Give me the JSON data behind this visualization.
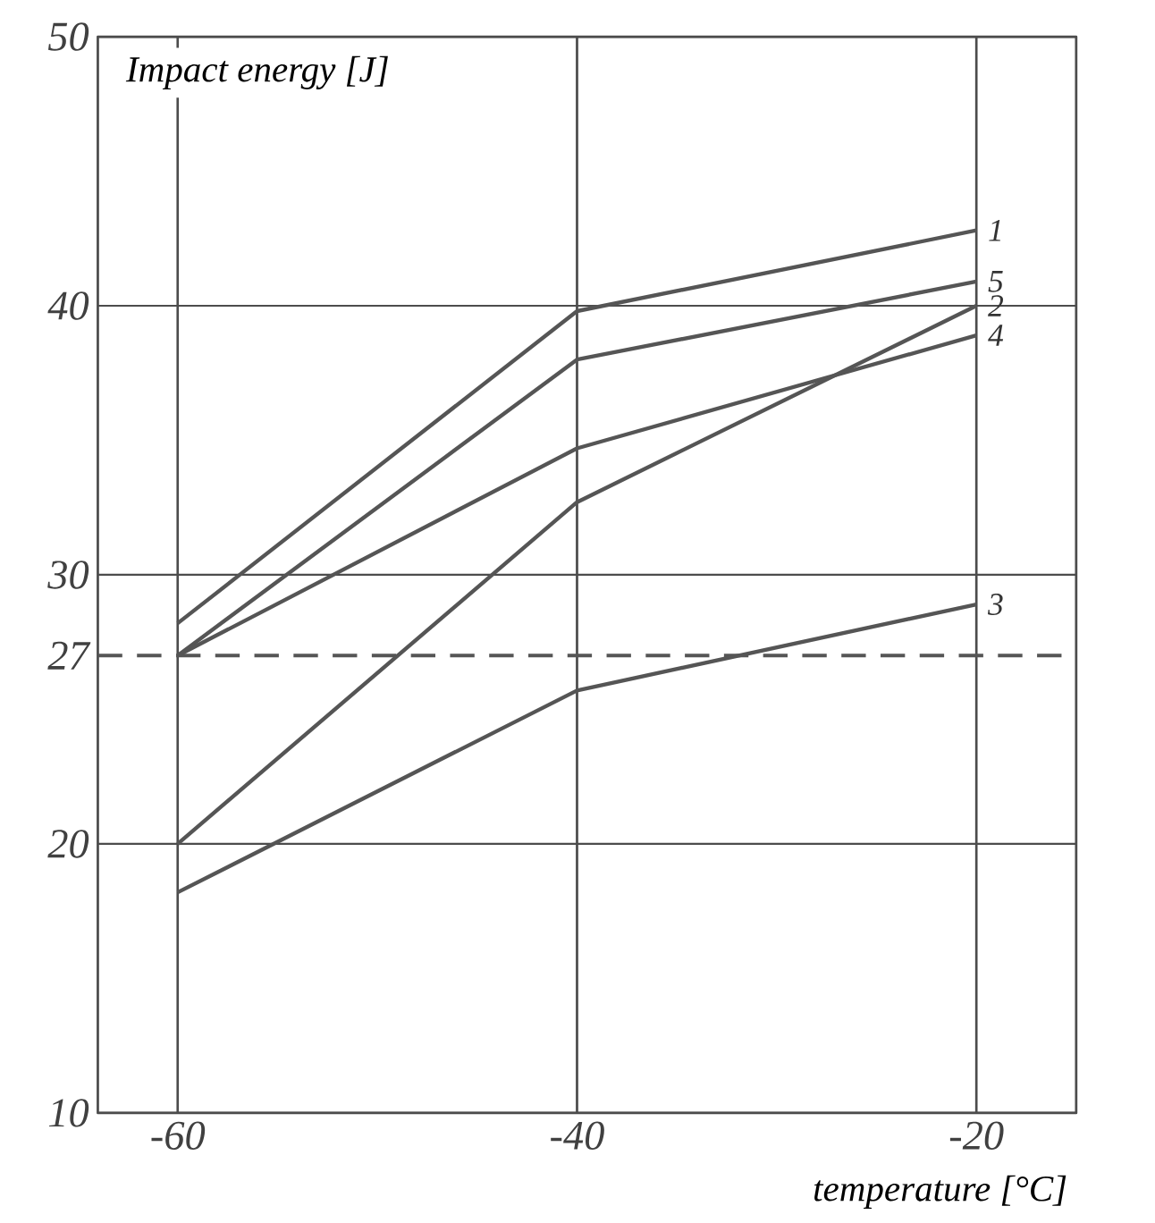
{
  "chart_data": {
    "type": "line",
    "xlabel": "temperature [°C]",
    "ylabel": "Impact energy [J]",
    "x": [
      -60,
      -40,
      -20
    ],
    "series": [
      {
        "name": "1",
        "color": "#555555",
        "values": [
          28.2,
          39.8,
          42.8
        ]
      },
      {
        "name": "5",
        "color": "#555555",
        "values": [
          27,
          38,
          40.9
        ]
      },
      {
        "name": "2",
        "color": "#555555",
        "values": [
          20,
          32.7,
          40
        ]
      },
      {
        "name": "4",
        "color": "#555555",
        "values": [
          27,
          34.7,
          38.9
        ]
      },
      {
        "name": "3",
        "color": "#555555",
        "values": [
          18.2,
          25.7,
          28.9
        ]
      }
    ],
    "xlim": [
      -64,
      -15
    ],
    "ylim": [
      10,
      50
    ],
    "xticks": [
      -60,
      -40,
      -20
    ],
    "yticks": [
      10,
      20,
      27,
      30,
      40,
      50
    ],
    "ref_lines": [
      {
        "axis": "y",
        "value": 27,
        "color": "#555555",
        "line_style": "dashed"
      }
    ],
    "grid": true,
    "marker": "none",
    "line_style": "solid"
  }
}
